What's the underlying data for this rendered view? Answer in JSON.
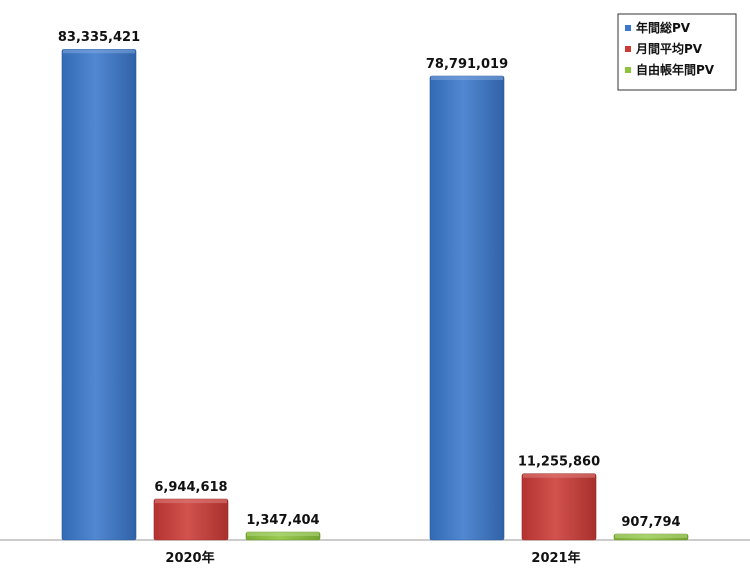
{
  "chart_data": {
    "type": "bar",
    "categories": [
      "2020年",
      "2021年"
    ],
    "series": [
      {
        "name": "年間総PV",
        "color": "#3a78cc",
        "values": [
          83335421,
          78791019
        ],
        "labels": [
          "83,335,421",
          "78,791,019"
        ]
      },
      {
        "name": "月間平均PV",
        "color": "#cc3a36",
        "values": [
          6944618,
          11255860
        ],
        "labels": [
          "6,944,618",
          "11,255,860"
        ]
      },
      {
        "name": "自由帳年間PV",
        "color": "#8cc43c",
        "values": [
          1347404,
          907794
        ],
        "labels": [
          "1,347,404",
          "907,794"
        ]
      }
    ],
    "ylim": [
      0,
      90000000
    ],
    "grid": false,
    "legend_position": "top-right"
  }
}
